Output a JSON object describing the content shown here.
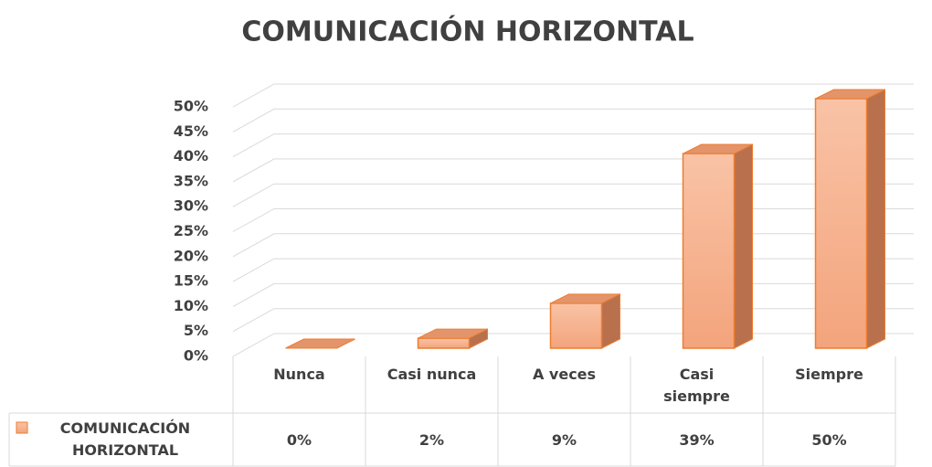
{
  "chart_data": {
    "type": "bar3d",
    "title": "COMUNICACIÓN HORIZONTAL",
    "categories": [
      "Nunca",
      "Casi nunca",
      "A veces",
      "Casi siempre",
      "Siempre"
    ],
    "series": [
      {
        "name": "COMUNICACIÓN HORIZONTAL",
        "color": "#f5ac86",
        "values": [
          0,
          2,
          9,
          39,
          50
        ],
        "value_labels": [
          "0%",
          "2%",
          "9%",
          "39%",
          "50%"
        ]
      }
    ],
    "ylim": [
      0,
      50
    ],
    "yticks": [
      {
        "value": 0,
        "label": "0%"
      },
      {
        "value": 5,
        "label": "5%"
      },
      {
        "value": 10,
        "label": "10%"
      },
      {
        "value": 15,
        "label": "15%"
      },
      {
        "value": 20,
        "label": "20%"
      },
      {
        "value": 25,
        "label": "25%"
      },
      {
        "value": 30,
        "label": "30%"
      },
      {
        "value": 35,
        "label": "35%"
      },
      {
        "value": 40,
        "label": "40%"
      },
      {
        "value": 45,
        "label": "45%"
      },
      {
        "value": 50,
        "label": "50%"
      }
    ],
    "grid": true,
    "data_table": true
  }
}
